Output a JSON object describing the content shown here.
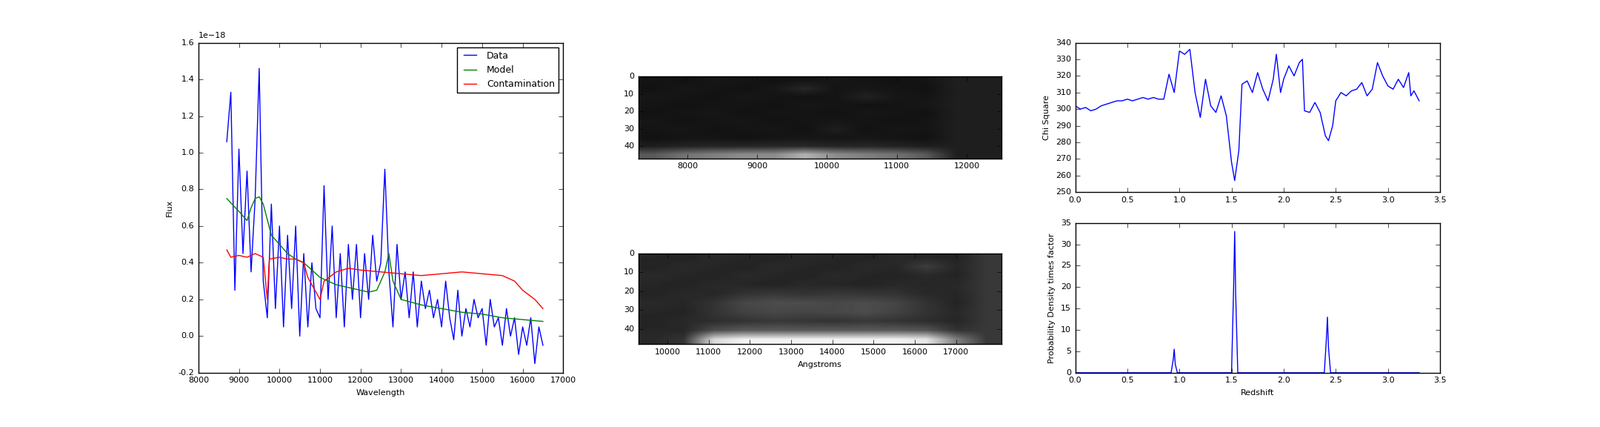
{
  "chart_data": [
    {
      "type": "line",
      "xlabel": "Wavelength",
      "ylabel": "Flux",
      "annotations": [
        "1e−18"
      ],
      "xlim": [
        8000,
        17000
      ],
      "ylim": [
        -0.2,
        1.6
      ],
      "xticks": [
        8000,
        9000,
        10000,
        11000,
        12000,
        13000,
        14000,
        15000,
        16000,
        17000
      ],
      "yticks": [
        -0.2,
        0.0,
        0.2,
        0.4,
        0.6,
        0.8,
        1.0,
        1.2,
        1.4,
        1.6
      ],
      "legend": "upper right",
      "series": [
        {
          "name": "Data",
          "color": "#0000ff",
          "x": [
            8700,
            8800,
            8900,
            9000,
            9100,
            9200,
            9300,
            9400,
            9500,
            9600,
            9700,
            9800,
            9900,
            10000,
            10100,
            10200,
            10300,
            10400,
            10500,
            10600,
            10700,
            10800,
            10900,
            11000,
            11100,
            11200,
            11300,
            11400,
            11500,
            11600,
            11700,
            11800,
            11900,
            12000,
            12100,
            12200,
            12300,
            12400,
            12500,
            12600,
            12700,
            12800,
            12900,
            13000,
            13100,
            13200,
            13300,
            13400,
            13500,
            13600,
            13700,
            13800,
            13900,
            14000,
            14100,
            14200,
            14300,
            14400,
            14500,
            14600,
            14700,
            14800,
            14900,
            15000,
            15100,
            15200,
            15300,
            15400,
            15500,
            15600,
            15700,
            15800,
            15900,
            16000,
            16100,
            16200,
            16300,
            16400,
            16500
          ],
          "values": [
            1.06,
            1.33,
            0.25,
            1.02,
            0.45,
            0.9,
            0.35,
            0.75,
            1.46,
            0.3,
            0.1,
            0.72,
            0.15,
            0.6,
            0.05,
            0.55,
            0.15,
            0.6,
            0.0,
            0.45,
            0.05,
            0.4,
            0.15,
            0.1,
            0.82,
            0.2,
            0.6,
            0.1,
            0.45,
            0.05,
            0.5,
            0.2,
            0.5,
            0.1,
            0.45,
            0.2,
            0.55,
            0.3,
            0.4,
            0.91,
            0.35,
            0.05,
            0.5,
            0.2,
            0.35,
            0.1,
            0.35,
            0.05,
            0.3,
            0.15,
            0.25,
            0.1,
            0.2,
            0.05,
            0.3,
            0.1,
            -0.02,
            0.25,
            0.0,
            0.15,
            0.05,
            0.2,
            0.1,
            0.15,
            -0.05,
            0.2,
            0.05,
            0.1,
            -0.05,
            0.15,
            0.0,
            0.1,
            -0.1,
            0.05,
            -0.05,
            0.1,
            -0.15,
            0.05,
            -0.05
          ]
        },
        {
          "name": "Model",
          "color": "#008000",
          "x": [
            8700,
            9000,
            9200,
            9300,
            9400,
            9500,
            9600,
            9800,
            10000,
            10200,
            10400,
            10600,
            10800,
            11000,
            11200,
            11400,
            11600,
            11800,
            12000,
            12200,
            12400,
            12600,
            12700,
            12800,
            13000,
            13500,
            14000,
            14500,
            15000,
            15500,
            16000,
            16500
          ],
          "values": [
            0.75,
            0.68,
            0.63,
            0.7,
            0.75,
            0.76,
            0.72,
            0.55,
            0.5,
            0.45,
            0.42,
            0.4,
            0.36,
            0.32,
            0.3,
            0.28,
            0.27,
            0.26,
            0.25,
            0.24,
            0.25,
            0.35,
            0.45,
            0.3,
            0.2,
            0.17,
            0.15,
            0.13,
            0.12,
            0.1,
            0.09,
            0.08
          ]
        },
        {
          "name": "Contamination",
          "color": "#ff0000",
          "x": [
            8700,
            8800,
            9000,
            9200,
            9400,
            9600,
            9700,
            9750,
            10000,
            10200,
            10400,
            10600,
            10700,
            10800,
            11000,
            11100,
            11400,
            11700,
            12000,
            12500,
            13000,
            13500,
            14000,
            14500,
            15000,
            15500,
            15800,
            16000,
            16300,
            16500
          ],
          "values": [
            0.47,
            0.43,
            0.44,
            0.43,
            0.45,
            0.43,
            0.2,
            0.42,
            0.43,
            0.42,
            0.42,
            0.4,
            0.32,
            0.28,
            0.2,
            0.3,
            0.35,
            0.37,
            0.36,
            0.35,
            0.34,
            0.33,
            0.34,
            0.35,
            0.34,
            0.33,
            0.3,
            0.25,
            0.2,
            0.15
          ]
        }
      ]
    },
    {
      "type": "heatmap",
      "xlim": [
        7300,
        12500
      ],
      "ylim": [
        47,
        0
      ],
      "xticks": [
        8000,
        9000,
        10000,
        11000,
        12000
      ],
      "yticks": [
        0,
        10,
        20,
        30,
        40
      ],
      "color_range": [
        0,
        1
      ],
      "cells": [
        [
          0.08,
          0.07,
          0.09,
          0.08,
          0.07,
          0.08,
          0.09,
          0.08,
          0.07,
          0.08,
          0.12,
          0.12
        ],
        [
          0.07,
          0.09,
          0.08,
          0.07,
          0.09,
          0.15,
          0.08,
          0.09,
          0.08,
          0.07,
          0.12,
          0.12
        ],
        [
          0.09,
          0.08,
          0.07,
          0.09,
          0.08,
          0.07,
          0.08,
          0.13,
          0.09,
          0.08,
          0.12,
          0.12
        ],
        [
          0.08,
          0.07,
          0.08,
          0.08,
          0.07,
          0.09,
          0.08,
          0.07,
          0.08,
          0.09,
          0.12,
          0.12
        ],
        [
          0.07,
          0.08,
          0.09,
          0.07,
          0.08,
          0.08,
          0.07,
          0.09,
          0.08,
          0.07,
          0.12,
          0.12
        ],
        [
          0.09,
          0.07,
          0.08,
          0.09,
          0.07,
          0.08,
          0.09,
          0.08,
          0.07,
          0.08,
          0.12,
          0.12
        ],
        [
          0.08,
          0.09,
          0.07,
          0.08,
          0.09,
          0.07,
          0.12,
          0.07,
          0.09,
          0.08,
          0.12,
          0.12
        ],
        [
          0.07,
          0.08,
          0.08,
          0.07,
          0.08,
          0.09,
          0.08,
          0.09,
          0.08,
          0.07,
          0.12,
          0.12
        ],
        [
          0.12,
          0.14,
          0.15,
          0.15,
          0.16,
          0.16,
          0.15,
          0.15,
          0.14,
          0.12,
          0.12,
          0.12
        ],
        [
          0.35,
          0.45,
          0.5,
          0.55,
          0.55,
          0.7,
          0.55,
          0.5,
          0.45,
          0.35,
          0.12,
          0.12
        ]
      ]
    },
    {
      "type": "heatmap",
      "xlabel": "Angstroms",
      "xlim": [
        9300,
        18100
      ],
      "ylim": [
        48,
        0
      ],
      "xticks": [
        10000,
        11000,
        12000,
        13000,
        14000,
        15000,
        16000,
        17000
      ],
      "yticks": [
        0,
        10,
        20,
        30,
        40
      ],
      "color_range": [
        0,
        1
      ],
      "cells": [
        [
          0.15,
          0.14,
          0.16,
          0.15,
          0.14,
          0.16,
          0.15,
          0.14,
          0.16,
          0.15,
          0.14,
          0.22
        ],
        [
          0.14,
          0.16,
          0.15,
          0.14,
          0.16,
          0.15,
          0.14,
          0.16,
          0.15,
          0.24,
          0.15,
          0.22
        ],
        [
          0.16,
          0.15,
          0.14,
          0.16,
          0.15,
          0.14,
          0.16,
          0.15,
          0.14,
          0.16,
          0.14,
          0.22
        ],
        [
          0.15,
          0.14,
          0.16,
          0.15,
          0.14,
          0.16,
          0.15,
          0.14,
          0.16,
          0.15,
          0.16,
          0.22
        ],
        [
          0.14,
          0.16,
          0.15,
          0.2,
          0.22,
          0.2,
          0.22,
          0.21,
          0.2,
          0.16,
          0.15,
          0.22
        ],
        [
          0.16,
          0.15,
          0.2,
          0.28,
          0.3,
          0.3,
          0.28,
          0.3,
          0.27,
          0.2,
          0.14,
          0.22
        ],
        [
          0.15,
          0.14,
          0.2,
          0.26,
          0.28,
          0.27,
          0.28,
          0.3,
          0.26,
          0.2,
          0.16,
          0.22
        ],
        [
          0.14,
          0.16,
          0.18,
          0.2,
          0.22,
          0.21,
          0.2,
          0.22,
          0.2,
          0.18,
          0.15,
          0.22
        ],
        [
          0.15,
          0.15,
          0.3,
          0.35,
          0.35,
          0.35,
          0.35,
          0.35,
          0.35,
          0.33,
          0.2,
          0.22
        ],
        [
          0.16,
          0.2,
          0.85,
          0.95,
          0.95,
          0.95,
          0.95,
          0.95,
          0.95,
          0.9,
          0.5,
          0.22
        ]
      ]
    },
    {
      "type": "line",
      "ylabel": "Chi Square",
      "xlim": [
        0.0,
        3.5
      ],
      "ylim": [
        250,
        340
      ],
      "xticks": [
        0.0,
        0.5,
        1.0,
        1.5,
        2.0,
        2.5,
        3.0,
        3.5
      ],
      "yticks": [
        250,
        260,
        270,
        280,
        290,
        300,
        310,
        320,
        330,
        340
      ],
      "series": [
        {
          "color": "#0000ff",
          "x": [
            0.0,
            0.05,
            0.1,
            0.15,
            0.2,
            0.25,
            0.3,
            0.35,
            0.4,
            0.45,
            0.5,
            0.55,
            0.6,
            0.65,
            0.7,
            0.75,
            0.8,
            0.85,
            0.9,
            0.95,
            1.0,
            1.05,
            1.1,
            1.15,
            1.2,
            1.25,
            1.3,
            1.35,
            1.4,
            1.45,
            1.5,
            1.53,
            1.57,
            1.6,
            1.65,
            1.7,
            1.75,
            1.8,
            1.85,
            1.9,
            1.93,
            1.97,
            2.0,
            2.05,
            2.1,
            2.15,
            2.18,
            2.2,
            2.25,
            2.3,
            2.35,
            2.4,
            2.43,
            2.47,
            2.5,
            2.55,
            2.6,
            2.65,
            2.7,
            2.75,
            2.8,
            2.85,
            2.9,
            2.95,
            3.0,
            3.05,
            3.1,
            3.15,
            3.2,
            3.22,
            3.25,
            3.3
          ],
          "values": [
            302,
            300,
            301,
            299,
            300,
            302,
            303,
            304,
            305,
            305,
            306,
            305,
            306,
            307,
            306,
            307,
            306,
            306,
            321,
            310,
            335,
            333,
            336,
            310,
            295,
            318,
            302,
            298,
            308,
            296,
            268,
            257,
            275,
            315,
            317,
            310,
            322,
            312,
            305,
            318,
            333,
            310,
            318,
            326,
            320,
            328,
            330,
            299,
            298,
            304,
            298,
            284,
            281,
            290,
            305,
            310,
            308,
            311,
            312,
            316,
            308,
            312,
            328,
            320,
            314,
            312,
            318,
            313,
            322,
            308,
            311,
            305
          ]
        }
      ]
    },
    {
      "type": "line",
      "xlabel": "Redshift",
      "ylabel": "Probability Density times factor",
      "xlim": [
        0.0,
        3.5
      ],
      "ylim": [
        0,
        35
      ],
      "xticks": [
        0.0,
        0.5,
        1.0,
        1.5,
        2.0,
        2.5,
        3.0,
        3.5
      ],
      "yticks": [
        0,
        5,
        10,
        15,
        20,
        25,
        30,
        35
      ],
      "series": [
        {
          "color": "#0000ff",
          "x": [
            0.0,
            0.92,
            0.94,
            0.95,
            0.96,
            0.98,
            1.5,
            1.52,
            1.53,
            1.54,
            1.56,
            2.39,
            2.41,
            2.42,
            2.43,
            2.45,
            3.3
          ],
          "values": [
            0,
            0,
            3,
            5.5,
            2,
            0,
            0,
            20,
            33,
            18,
            0,
            0,
            8,
            13,
            6,
            0,
            0
          ]
        }
      ]
    }
  ]
}
